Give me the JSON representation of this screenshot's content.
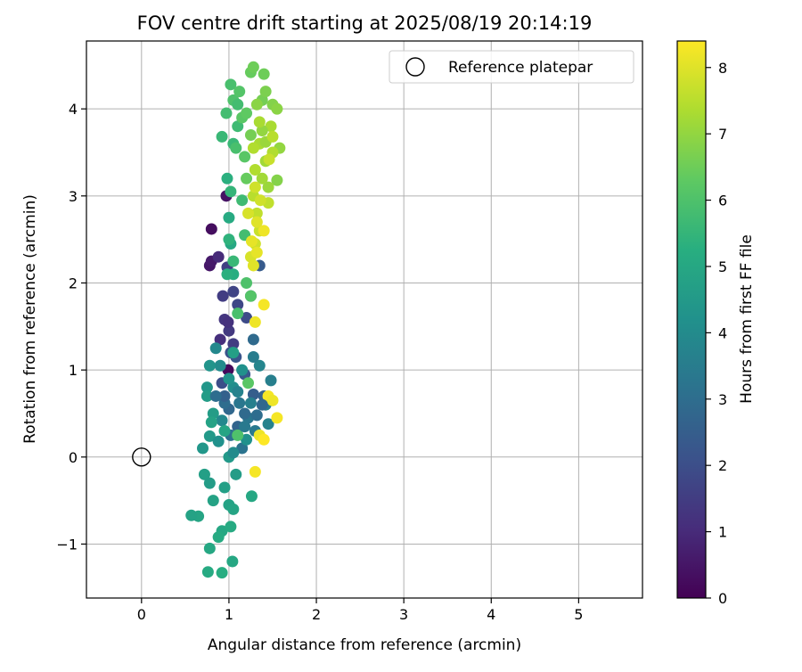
{
  "chart_data": {
    "type": "scatter",
    "title": "FOV centre drift starting at 2025/08/19 20:14:19",
    "xlabel": "Angular distance from reference (arcmin)",
    "ylabel": "Rotation from reference (arcmin)",
    "xlim": [
      -0.63,
      5.73
    ],
    "ylim": [
      -1.62,
      4.78
    ],
    "xticks": [
      0,
      1,
      2,
      3,
      4,
      5
    ],
    "xtick_labels": [
      "0",
      "1",
      "2",
      "3",
      "4",
      "5"
    ],
    "yticks": [
      -1,
      0,
      1,
      2,
      3,
      4
    ],
    "ytick_labels": [
      "−1",
      "0",
      "1",
      "2",
      "3",
      "4"
    ],
    "grid": true,
    "legend": {
      "position": "top-right",
      "entries": [
        {
          "label": "Reference platepar",
          "marker": "open-circle"
        }
      ]
    },
    "colorbar": {
      "label": "Hours from first FF file",
      "colormap": "viridis",
      "min": 0,
      "max": 8.4,
      "ticks": [
        0,
        1,
        2,
        3,
        4,
        5,
        6,
        7,
        8
      ],
      "tick_labels": [
        "0",
        "1",
        "2",
        "3",
        "4",
        "5",
        "6",
        "7",
        "8"
      ]
    },
    "reference_point": {
      "x": 0,
      "y": 0,
      "label": "Reference platepar"
    },
    "series": [
      {
        "point_format": "[x_arcmin, y_arcmin, hours]",
        "points": [
          [
            0.8,
            2.62,
            0.3
          ],
          [
            0.78,
            2.2,
            0.5
          ],
          [
            0.8,
            2.25,
            0.6
          ],
          [
            0.88,
            2.3,
            1.0
          ],
          [
            0.9,
            1.35,
            1.1
          ],
          [
            0.95,
            1.58,
            1.3
          ],
          [
            1.0,
            1.45,
            1.4
          ],
          [
            1.05,
            1.3,
            1.5
          ],
          [
            0.98,
            2.18,
            1.6
          ],
          [
            1.05,
            1.9,
            1.7
          ],
          [
            1.1,
            1.75,
            1.8
          ],
          [
            1.2,
            1.6,
            1.9
          ],
          [
            0.97,
            3.0,
            0.4
          ],
          [
            0.99,
            1.0,
            0.2
          ],
          [
            0.92,
            0.85,
            2.0
          ],
          [
            1.02,
            1.2,
            2.1
          ],
          [
            1.08,
            1.15,
            2.2
          ],
          [
            1.18,
            0.95,
            2.3
          ],
          [
            1.25,
            1.85,
            2.0
          ],
          [
            1.35,
            2.2,
            2.4
          ],
          [
            1.28,
            0.72,
            2.5
          ],
          [
            1.4,
            0.7,
            2.6
          ],
          [
            1.1,
            0.35,
            2.7
          ],
          [
            1.0,
            0.55,
            2.8
          ],
          [
            0.95,
            0.62,
            3.0
          ],
          [
            1.02,
            0.25,
            3.1
          ],
          [
            1.15,
            0.1,
            3.2
          ],
          [
            1.22,
            0.45,
            3.3
          ],
          [
            1.3,
            0.3,
            3.4
          ],
          [
            1.42,
            0.6,
            3.5
          ],
          [
            1.48,
            0.88,
            3.6
          ],
          [
            1.45,
            0.38,
            3.7
          ],
          [
            1.35,
            1.05,
            3.8
          ],
          [
            0.85,
            1.25,
            3.9
          ],
          [
            0.9,
            1.05,
            4.0
          ],
          [
            1.05,
            0.8,
            4.1
          ],
          [
            1.2,
            0.2,
            4.2
          ],
          [
            0.78,
            1.05,
            4.3
          ],
          [
            0.75,
            0.8,
            4.4
          ],
          [
            1.0,
            0.0,
            4.5
          ],
          [
            1.08,
            -0.2,
            4.6
          ],
          [
            0.95,
            -0.35,
            4.7
          ],
          [
            1.0,
            -0.55,
            4.8
          ],
          [
            1.05,
            -0.6,
            4.9
          ],
          [
            0.92,
            -0.85,
            5.0
          ],
          [
            0.88,
            -0.92,
            5.1
          ],
          [
            0.78,
            -1.05,
            5.0
          ],
          [
            0.76,
            -1.32,
            5.1
          ],
          [
            0.92,
            -1.33,
            5.2
          ],
          [
            1.04,
            -1.2,
            5.0
          ],
          [
            0.65,
            -0.68,
            4.9
          ],
          [
            0.57,
            -0.67,
            4.8
          ],
          [
            0.72,
            -0.2,
            4.7
          ],
          [
            0.78,
            -0.3,
            4.6
          ],
          [
            0.82,
            -0.5,
            4.8
          ],
          [
            1.26,
            -0.45,
            5.0
          ],
          [
            1.02,
            -0.8,
            5.1
          ],
          [
            0.7,
            0.1,
            4.4
          ],
          [
            0.78,
            0.24,
            4.5
          ],
          [
            0.75,
            0.7,
            4.6
          ],
          [
            0.82,
            0.5,
            4.6
          ],
          [
            1.02,
            2.45,
            5.0
          ],
          [
            1.0,
            2.75,
            5.1
          ],
          [
            1.05,
            2.1,
            5.2
          ],
          [
            0.98,
            2.1,
            5.3
          ],
          [
            1.0,
            2.5,
            5.4
          ],
          [
            1.02,
            3.05,
            5.5
          ],
          [
            0.98,
            3.2,
            5.3
          ],
          [
            1.05,
            3.6,
            5.6
          ],
          [
            1.1,
            3.8,
            5.7
          ],
          [
            0.97,
            3.95,
            5.8
          ],
          [
            0.92,
            3.68,
            5.6
          ],
          [
            1.02,
            4.28,
            5.9
          ],
          [
            1.05,
            4.1,
            6.0
          ],
          [
            1.12,
            4.2,
            6.1
          ],
          [
            1.15,
            3.9,
            6.2
          ],
          [
            1.2,
            3.95,
            6.3
          ],
          [
            1.25,
            4.42,
            6.4
          ],
          [
            1.28,
            4.48,
            6.5
          ],
          [
            1.4,
            4.4,
            6.5
          ],
          [
            1.38,
            4.1,
            6.6
          ],
          [
            1.42,
            4.2,
            6.7
          ],
          [
            1.5,
            4.05,
            6.8
          ],
          [
            1.55,
            4.0,
            6.9
          ],
          [
            1.58,
            3.55,
            7.0
          ],
          [
            1.55,
            3.18,
            6.8
          ],
          [
            1.45,
            3.1,
            7.1
          ],
          [
            1.42,
            3.4,
            7.2
          ],
          [
            1.35,
            3.6,
            7.3
          ],
          [
            1.3,
            3.3,
            7.4
          ],
          [
            1.28,
            3.0,
            7.5
          ],
          [
            1.32,
            2.8,
            7.6
          ],
          [
            1.35,
            2.6,
            7.7
          ],
          [
            1.3,
            2.45,
            7.8
          ],
          [
            1.25,
            2.3,
            7.9
          ],
          [
            1.28,
            2.2,
            8.0
          ],
          [
            1.32,
            2.35,
            8.1
          ],
          [
            1.4,
            2.6,
            8.2
          ],
          [
            1.45,
            2.92,
            7.6
          ],
          [
            1.5,
            3.5,
            7.4
          ],
          [
            1.48,
            3.8,
            7.3
          ],
          [
            1.38,
            3.2,
            7.2
          ],
          [
            1.4,
            1.75,
            8.3
          ],
          [
            1.3,
            1.55,
            8.2
          ],
          [
            1.45,
            0.7,
            8.3
          ],
          [
            1.5,
            0.65,
            8.2
          ],
          [
            1.55,
            0.45,
            8.3
          ],
          [
            1.35,
            0.25,
            8.2
          ],
          [
            1.4,
            0.2,
            8.4
          ],
          [
            1.3,
            -0.17,
            8.3
          ],
          [
            1.22,
            0.85,
            6.2
          ],
          [
            1.1,
            0.25,
            6.0
          ],
          [
            1.25,
            1.85,
            6.1
          ],
          [
            1.1,
            1.65,
            5.9
          ],
          [
            1.2,
            2.0,
            6.0
          ],
          [
            1.18,
            3.45,
            6.2
          ],
          [
            1.1,
            4.05,
            5.8
          ],
          [
            1.08,
            3.55,
            5.9
          ],
          [
            1.15,
            2.95,
            5.7
          ],
          [
            1.18,
            2.55,
            5.8
          ],
          [
            1.05,
            2.25,
            5.6
          ],
          [
            0.99,
            1.55,
            1.2
          ],
          [
            0.93,
            1.85,
            1.5
          ],
          [
            0.95,
            0.7,
            2.6
          ],
          [
            1.18,
            0.5,
            2.9
          ],
          [
            1.12,
            0.62,
            3.3
          ],
          [
            1.25,
            0.62,
            3.6
          ],
          [
            1.18,
            0.35,
            3.4
          ],
          [
            0.92,
            0.42,
            3.9
          ],
          [
            1.05,
            0.05,
            4.0
          ],
          [
            0.88,
            0.18,
            4.2
          ],
          [
            1.0,
            0.9,
            4.3
          ],
          [
            1.15,
            1.0,
            4.2
          ],
          [
            1.1,
            0.75,
            3.7
          ],
          [
            1.28,
            1.15,
            3.5
          ],
          [
            1.32,
            0.48,
            3.0
          ],
          [
            1.38,
            0.6,
            2.8
          ],
          [
            1.28,
            1.35,
            2.9
          ],
          [
            0.85,
            0.7,
            3.0
          ],
          [
            0.8,
            0.4,
            4.8
          ],
          [
            0.95,
            0.3,
            4.9
          ],
          [
            1.05,
            1.2,
            4.7
          ],
          [
            1.2,
            3.2,
            6.4
          ],
          [
            1.25,
            3.7,
            6.6
          ],
          [
            1.32,
            4.05,
            6.9
          ],
          [
            1.38,
            3.75,
            7.0
          ],
          [
            1.42,
            3.62,
            7.1
          ],
          [
            1.35,
            3.85,
            7.3
          ],
          [
            1.28,
            3.55,
            7.4
          ],
          [
            1.5,
            3.68,
            7.5
          ],
          [
            1.46,
            3.42,
            7.7
          ],
          [
            1.36,
            2.95,
            7.8
          ],
          [
            1.32,
            2.7,
            8.0
          ],
          [
            1.26,
            2.48,
            8.1
          ],
          [
            1.22,
            2.8,
            7.9
          ],
          [
            1.3,
            3.1,
            7.8
          ]
        ]
      }
    ]
  }
}
